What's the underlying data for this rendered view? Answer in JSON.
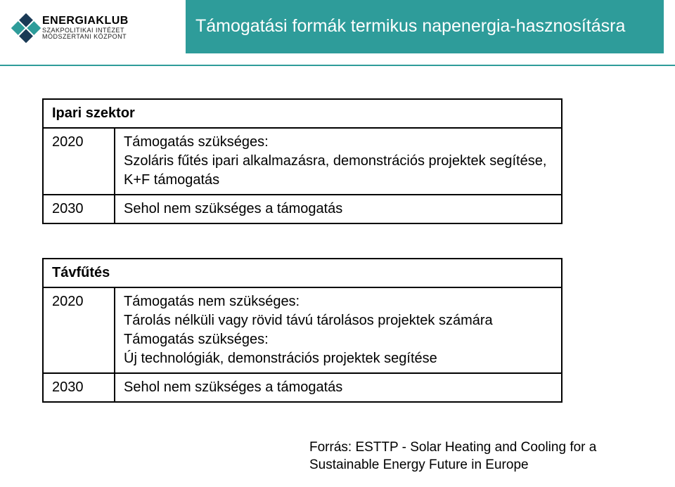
{
  "colors": {
    "accent": "#2e9c9a",
    "logo_dark": "#1a3a56",
    "divider": "#2e9c9a",
    "title_text": "#ffffff",
    "text": "#000000",
    "background": "#ffffff"
  },
  "logo": {
    "name": "ENERGIAKLUB",
    "sub1": "SZAKPOLITIKAI INTÉZET",
    "sub2": "MÓDSZERTANI KÖZPONT"
  },
  "title": "Támogatási formák termikus napenergia-hasznosításra",
  "table1": {
    "header": "Ipari szektor",
    "rows": [
      {
        "year": "2020",
        "lines": [
          "Támogatás szükséges:",
          "Szoláris fűtés ipari alkalmazásra, demonstrációs projektek segítése, K+F támogatás"
        ]
      },
      {
        "year": "2030",
        "lines": [
          "Sehol nem szükséges a támogatás"
        ]
      }
    ]
  },
  "table2": {
    "header": "Távfűtés",
    "rows": [
      {
        "year": "2020",
        "lines": [
          "Támogatás nem szükséges:",
          "Tárolás nélküli vagy rövid távú tárolásos projektek számára",
          "Támogatás szükséges:",
          "Új technológiák, demonstrációs projektek segítése"
        ]
      },
      {
        "year": "2030",
        "lines": [
          "Sehol nem szükséges a támogatás"
        ]
      }
    ]
  },
  "source": {
    "line1": "Forrás: ESTTP - Solar Heating and Cooling for a",
    "line2": "Sustainable Energy Future in Europe"
  }
}
